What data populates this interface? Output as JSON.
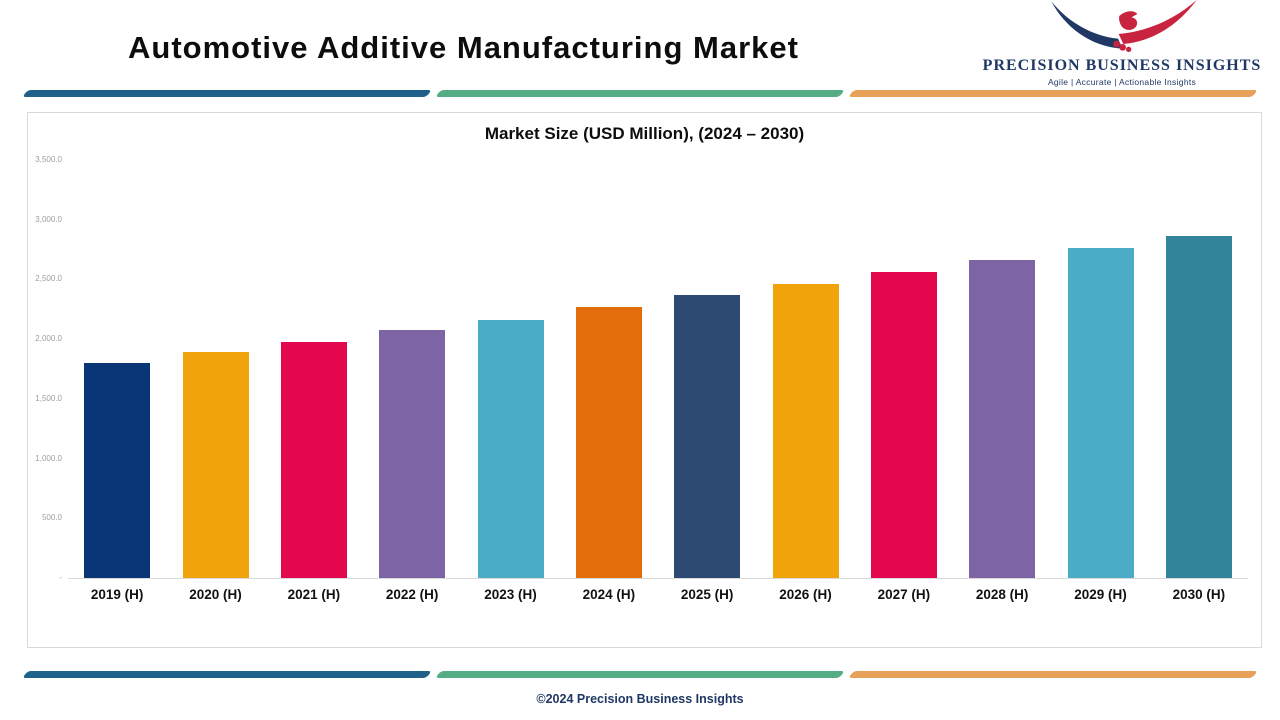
{
  "header": {
    "title": "Automotive Additive Manufacturing Market"
  },
  "logo": {
    "name": "PRECISION BUSINESS INSIGHTS",
    "tagline": "Agile | Accurate | Actionable Insights",
    "icon": "eagle-icon"
  },
  "footer": {
    "copyright": "©2024 Precision Business Insights"
  },
  "colors": {
    "divider": [
      "#1F6189",
      "#55AD85",
      "#E8A159"
    ],
    "logo_navy": "#1F3864",
    "logo_red": "#C9243F",
    "axis_line": "#D9D9D9",
    "ytick_text": "#9E9E9E"
  },
  "chart_data": {
    "type": "bar",
    "title": "Market Size (USD Million), (2024 – 2030)",
    "units": "USD Million",
    "categories": [
      "2019 (H)",
      "2020 (H)",
      "2021 (H)",
      "2022 (H)",
      "2023 (H)",
      "2024 (H)",
      "2025 (H)",
      "2026 (H)",
      "2027 (H)",
      "2028 (H)",
      "2029 (H)",
      "2030 (H)"
    ],
    "values": [
      1800,
      1890,
      1980,
      2080,
      2160,
      2270,
      2370,
      2460,
      2560,
      2660,
      2760,
      2860
    ],
    "bar_colors": [
      "#0A3577",
      "#F0A30B",
      "#E3074E",
      "#7D64A5",
      "#4AACC6",
      "#E26D0A",
      "#2C4A72",
      "#F0A30B",
      "#E3074E",
      "#7D64A5",
      "#4AACC6",
      "#33839B"
    ],
    "xlabel": "",
    "ylabel": "",
    "ylim": [
      0,
      3500
    ],
    "ytick_interval": 500,
    "ytick_labels": [
      "-",
      "500.0",
      "1,000.0",
      "1,500.0",
      "2,000.0",
      "2,500.0",
      "3,000.0",
      "3,500.0"
    ],
    "grid": false,
    "legend": false
  }
}
